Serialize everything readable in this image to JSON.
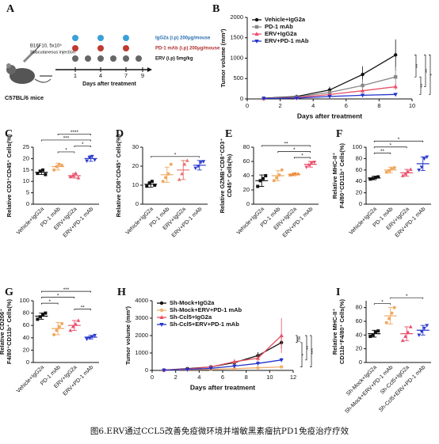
{
  "caption": "图6.ERV通过CCL5改善免疫微环境并增敏黑素瘤抗PD1免疫治疗疗效",
  "schematic": {
    "label": "A",
    "cells": "B16F10, 5x10⁵",
    "route": "Subcutaneous injection",
    "mice": "C57BL/6  mice",
    "treatments": [
      "IgG2a (i.p)  200μg/mouse",
      "PD-1 mAb (i.p) 200μg/mouse",
      "ERV (i.p)  5mg/kg"
    ],
    "days": [
      "1",
      "4",
      "7",
      "9"
    ],
    "xlabel": "Days after treatment"
  },
  "chart_data": [
    {
      "type": "line",
      "label": "B",
      "xlabel": "Days after treatment",
      "ylabel": "Tumor volume (mm³)",
      "x": [
        1,
        3,
        5,
        7,
        9
      ],
      "xlim": [
        0,
        10
      ],
      "xticks": [
        0,
        2,
        4,
        6,
        8,
        10
      ],
      "ylim": [
        0,
        2000
      ],
      "yticks": [
        0,
        500,
        1000,
        1500,
        2000
      ],
      "series": [
        {
          "name": "Vehicle+IgG2a",
          "color": "#111111",
          "marker": "circle",
          "values": [
            20,
            60,
            220,
            600,
            1080
          ],
          "errors": [
            5,
            20,
            80,
            200,
            380
          ]
        },
        {
          "name": "PD-1 mAb",
          "color": "#888888",
          "marker": "square",
          "values": [
            15,
            45,
            160,
            330,
            540
          ],
          "errors": [
            5,
            15,
            50,
            150,
            250
          ]
        },
        {
          "name": "ERV+IgG2a",
          "color": "#e8506b",
          "marker": "triangle",
          "values": [
            10,
            30,
            110,
            200,
            300
          ],
          "errors": [
            5,
            10,
            40,
            60,
            80
          ]
        },
        {
          "name": "ERV+PD-1 mAb",
          "color": "#2233cc",
          "marker": "triangle-down",
          "values": [
            10,
            20,
            60,
            90,
            110
          ],
          "errors": [
            3,
            8,
            20,
            30,
            30
          ]
        }
      ],
      "brackets": [
        {
          "label": "**",
          "between": [
            0,
            1
          ]
        },
        {
          "label": "**",
          "between": [
            1,
            3
          ]
        },
        {
          "label": "**",
          "between": [
            0,
            2
          ]
        },
        {
          "label": "*",
          "between": [
            0,
            3
          ]
        }
      ]
    },
    {
      "type": "dot",
      "label": "C",
      "ylabel": "Relative CD3⁺CD45⁺ Cells(%)",
      "categories": [
        "Vehicle+IgG2a",
        "PD-1 mAb",
        "ERV+IgG2a",
        "ERV+PD-1 mAb"
      ],
      "colors": [
        "#111111",
        "#f0a860",
        "#e8506b",
        "#2a3acc"
      ],
      "markers": [
        "square",
        "circle",
        "triangle",
        "triangle-down"
      ],
      "values": [
        14,
        16.5,
        12.5,
        20
      ],
      "errors": [
        1,
        1.5,
        1,
        1.2
      ],
      "points": [
        [
          13.5,
          14.5,
          15,
          13
        ],
        [
          15,
          16.5,
          17.5,
          17
        ],
        [
          12,
          12.5,
          13.5,
          11.5
        ],
        [
          19,
          20.5,
          21,
          19.5
        ]
      ],
      "ylim": [
        0,
        25
      ],
      "yticks": [
        0,
        5,
        10,
        15,
        20,
        25
      ],
      "brackets": [
        {
          "label": "*",
          "between": [
            1,
            2
          ]
        },
        {
          "label": "*",
          "between": [
            2,
            3
          ]
        },
        {
          "label": "***",
          "between": [
            0,
            3
          ]
        },
        {
          "label": "****",
          "between": [
            1,
            3
          ]
        }
      ]
    },
    {
      "type": "dot",
      "label": "D",
      "ylabel": "Relative CD8⁺CD45⁺ Cells(%)",
      "categories": [
        "Vehicle+IgG2a",
        "PD-1 mAb",
        "ERV+IgG2a",
        "ERV+PD-1 mAb"
      ],
      "colors": [
        "#111111",
        "#f0a860",
        "#e8706b",
        "#2a3acc"
      ],
      "markers": [
        "square",
        "circle",
        "triangle",
        "triangle-down"
      ],
      "values": [
        10.5,
        15.5,
        18,
        20.5
      ],
      "errors": [
        1.5,
        4,
        5,
        2.5
      ],
      "points": [
        [
          9.5,
          11,
          12,
          10
        ],
        [
          12,
          14,
          16,
          21
        ],
        [
          13,
          16,
          21,
          23
        ],
        [
          19,
          20,
          22,
          22.5
        ]
      ],
      "ylim": [
        0,
        30
      ],
      "yticks": [
        0,
        10,
        20,
        30
      ],
      "brackets": [
        {
          "label": "*",
          "between": [
            0,
            3
          ]
        }
      ]
    },
    {
      "type": "dot",
      "label": "E",
      "ylabel": [
        "Relative GZMB⁺CD8⁺CD3⁺",
        "CD45⁺ Cells(%)"
      ],
      "categories": [
        "Vehicle+IgG2a",
        "PD-1 mAb",
        "ERV+IgG2a",
        "ERV+PD-1 mAb"
      ],
      "colors": [
        "#111111",
        "#f0a860",
        "#f08c3c",
        "#e8506b"
      ],
      "markers": [
        "square",
        "circle",
        "triangle",
        "triangle-down"
      ],
      "values": [
        33,
        40,
        42,
        56
      ],
      "errors": [
        8,
        7,
        2,
        4
      ],
      "points": [
        [
          25,
          33,
          36,
          40
        ],
        [
          33,
          37,
          41,
          48
        ],
        [
          41,
          42,
          43,
          42.5
        ],
        [
          52,
          55,
          58,
          59
        ]
      ],
      "ylim": [
        0,
        80
      ],
      "yticks": [
        0,
        20,
        40,
        60,
        80
      ],
      "brackets": [
        {
          "label": "*",
          "between": [
            2,
            3
          ]
        },
        {
          "label": "*",
          "between": [
            1,
            3
          ]
        },
        {
          "label": "**",
          "between": [
            0,
            3
          ]
        }
      ]
    },
    {
      "type": "dot",
      "label": "F",
      "ylabel": [
        "Relative MHC-II⁺",
        "F4/80⁺CD11b⁺ Cells(%)"
      ],
      "categories": [
        "Vehicle+IgG2a",
        "PD-1 mAb",
        "ERV+IgG2a",
        "ERV+PD-1 mAb"
      ],
      "colors": [
        "#111111",
        "#f0a860",
        "#e8506b",
        "#2a3acc"
      ],
      "markers": [
        "square",
        "circle",
        "triangle",
        "triangle-down"
      ],
      "values": [
        46,
        60,
        55,
        71
      ],
      "errors": [
        3,
        5,
        6,
        12
      ],
      "points": [
        [
          44,
          45,
          47,
          48
        ],
        [
          56,
          59,
          62,
          64
        ],
        [
          50,
          53,
          57,
          61
        ],
        [
          60,
          65,
          80,
          83
        ]
      ],
      "ylim": [
        0,
        100
      ],
      "yticks": [
        0,
        20,
        40,
        60,
        80,
        100
      ],
      "brackets": [
        {
          "label": "**",
          "between": [
            0,
            1
          ]
        },
        {
          "label": "*",
          "between": [
            0,
            2
          ]
        },
        {
          "label": "*",
          "between": [
            0,
            3
          ]
        }
      ]
    },
    {
      "type": "dot",
      "label": "G",
      "ylabel": [
        "Relative CD206⁺",
        "F4/80⁺CD11b⁺ Cells(%)"
      ],
      "categories": [
        "Vehicle+IgG2a",
        "PD-1 mAb",
        "ERV+IgG2a",
        "ERV+PD-1 mAb"
      ],
      "colors": [
        "#111111",
        "#f0a860",
        "#e8506b",
        "#2a3acc"
      ],
      "markers": [
        "square",
        "circle",
        "triangle",
        "triangle-down"
      ],
      "values": [
        75,
        55,
        60,
        41
      ],
      "errors": [
        5,
        10,
        8,
        3
      ],
      "points": [
        [
          70,
          74,
          78,
          80
        ],
        [
          45,
          52,
          58,
          63
        ],
        [
          52,
          58,
          62,
          68
        ],
        [
          38,
          40,
          42,
          44
        ]
      ],
      "ylim": [
        0,
        100
      ],
      "yticks": [
        0,
        20,
        40,
        60,
        80,
        100
      ],
      "brackets": [
        {
          "label": "**",
          "between": [
            2,
            3
          ]
        },
        {
          "label": "*",
          "between": [
            0,
            1
          ]
        },
        {
          "label": "*",
          "between": [
            0,
            2
          ]
        },
        {
          "label": "***",
          "between": [
            0,
            3
          ]
        }
      ]
    },
    {
      "type": "line",
      "label": "H",
      "xlabel": "Days after treatment",
      "ylabel": "Tumor volume (mm³)",
      "x": [
        1,
        3,
        5,
        7,
        9,
        11
      ],
      "xlim": [
        0,
        12
      ],
      "xticks": [
        0,
        2,
        4,
        6,
        8,
        10,
        12
      ],
      "ylim": [
        0,
        4000
      ],
      "yticks": [
        0,
        1000,
        2000,
        3000,
        4000
      ],
      "series": [
        {
          "name": "Sh-Mock+IgG2a",
          "color": "#111111",
          "marker": "circle",
          "values": [
            20,
            100,
            200,
            450,
            850,
            1600
          ],
          "errors": [
            5,
            30,
            60,
            150,
            200,
            350
          ]
        },
        {
          "name": "Sh-Mock+ERV+PD-1 mAb",
          "color": "#f0b070",
          "marker": "circle",
          "values": [
            10,
            30,
            60,
            100,
            150,
            200
          ],
          "errors": [
            5,
            10,
            20,
            30,
            40,
            60
          ]
        },
        {
          "name": "Sh-Ccl5+IgG2a",
          "color": "#e85060",
          "marker": "triangle",
          "values": [
            20,
            80,
            200,
            500,
            700,
            2000
          ],
          "errors": [
            5,
            20,
            60,
            150,
            250,
            1000
          ]
        },
        {
          "name": "Sh-Ccl5+ERV+PD-1 mAb",
          "color": "#2233cc",
          "marker": "triangle-down",
          "values": [
            10,
            50,
            120,
            250,
            400,
            600
          ],
          "errors": [
            5,
            15,
            40,
            80,
            100,
            120
          ]
        }
      ],
      "brackets": [
        {
          "label": "ns",
          "between": [
            0,
            2
          ]
        },
        {
          "label": "*",
          "between": [
            0,
            1
          ]
        },
        {
          "label": "**",
          "between": [
            2,
            3
          ]
        },
        {
          "label": "***",
          "between": [
            2,
            1
          ]
        }
      ]
    },
    {
      "type": "dot",
      "label": "I",
      "ylabel": [
        "Relative MHC-II⁺",
        "CD11b⁺F4/80⁺ Cells(%)"
      ],
      "categories": [
        "Sh-Mock+IgG2a",
        "Sh-Mock+ERV+PD-1 mAb",
        "Sh-Ccl5+IgG2a",
        "Sh-Ccl5+ERV+PD-1 mAb"
      ],
      "colors": [
        "#111111",
        "#f0a860",
        "#e8506b",
        "#2a3acc"
      ],
      "markers": [
        "square",
        "circle",
        "triangle",
        "triangle-down"
      ],
      "values": [
        42,
        68,
        42,
        47
      ],
      "errors": [
        5,
        12,
        10,
        7
      ],
      "points": [
        [
          38,
          40,
          44,
          46
        ],
        [
          58,
          64,
          72,
          80
        ],
        [
          32,
          38,
          44,
          52
        ],
        [
          40,
          45,
          50,
          54
        ]
      ],
      "ylim": [
        0,
        90
      ],
      "yticks": [
        0,
        20,
        40,
        60,
        80
      ],
      "brackets": [
        {
          "label": "*",
          "between": [
            0,
            1
          ]
        },
        {
          "label": "*",
          "between": [
            1,
            3
          ]
        }
      ]
    }
  ]
}
